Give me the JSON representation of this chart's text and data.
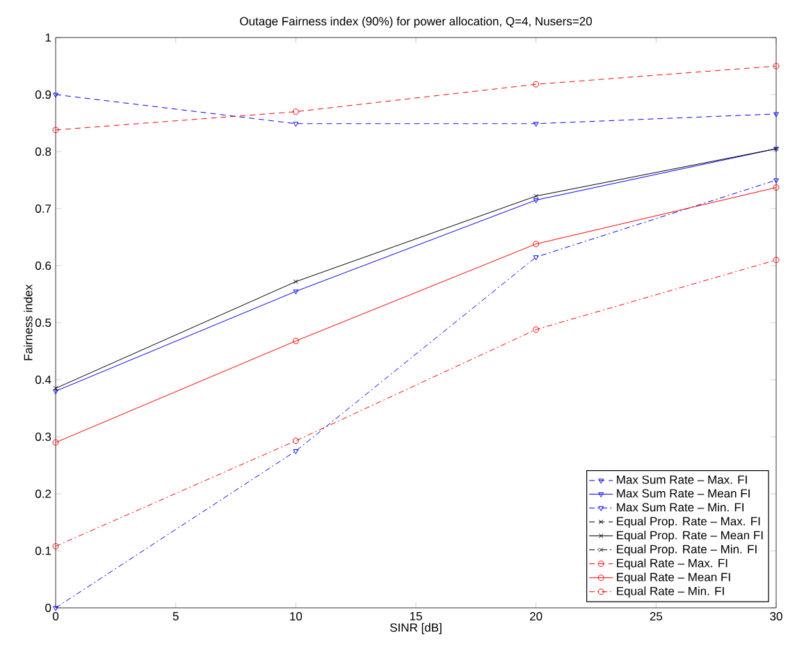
{
  "chart_data": {
    "type": "line",
    "title": "Outage Fairness index (90%) for power allocation, Q=4, Nusers=20",
    "xlabel": "SINR [dB]",
    "ylabel": "Fairness index",
    "x": [
      0,
      10,
      20,
      30
    ],
    "xlim": [
      0,
      30
    ],
    "xticks": [
      0,
      5,
      10,
      15,
      20,
      25,
      30
    ],
    "ylim": [
      0,
      1
    ],
    "yticks": [
      0,
      0.1,
      0.2,
      0.3,
      0.4,
      0.5,
      0.6,
      0.7,
      0.8,
      0.9,
      1
    ],
    "legend": "bottom right",
    "grid": false,
    "series": [
      {
        "name": "Max Sum Rate – Max. FI",
        "color": "#0000ff",
        "marker": "triangle",
        "line_style": "dashed",
        "values": [
          0.9,
          0.849,
          0.849,
          0.866
        ]
      },
      {
        "name": "Max Sum Rate – Mean FI",
        "color": "#0000ff",
        "marker": "triangle",
        "line_style": "solid",
        "values": [
          0.38,
          0.555,
          0.715,
          0.805
        ]
      },
      {
        "name": "Max Sum Rate – Min. FI",
        "color": "#0000ff",
        "marker": "triangle",
        "line_style": "dashdot",
        "values": [
          0,
          0.275,
          0.615,
          0.75
        ]
      },
      {
        "name": "Equal Prop. Rate – Max. FI",
        "color": "#000000",
        "marker": "cross",
        "line_style": "dashed",
        "values": [
          null,
          null,
          null,
          null
        ]
      },
      {
        "name": "Equal Prop. Rate – Mean FI",
        "color": "#000000",
        "marker": "cross",
        "line_style": "solid",
        "values": [
          0.385,
          0.572,
          0.722,
          0.805
        ]
      },
      {
        "name": "Equal Prop. Rate  – Min. FI",
        "color": "#000000",
        "marker": "cross",
        "line_style": "dashdot",
        "values": [
          null,
          null,
          null,
          null
        ]
      },
      {
        "name": "Equal Rate – Max. FI",
        "color": "#ff0000",
        "marker": "circle",
        "line_style": "dashed",
        "values": [
          0.838,
          0.87,
          0.918,
          0.95
        ]
      },
      {
        "name": "Equal Rate – Mean FI",
        "color": "#ff0000",
        "marker": "circle",
        "line_style": "solid",
        "values": [
          0.29,
          0.468,
          0.638,
          0.737
        ]
      },
      {
        "name": "Equal Rate – Min. FI",
        "color": "#ff0000",
        "marker": "circle",
        "line_style": "dashdot",
        "values": [
          0.108,
          0.293,
          0.488,
          0.61
        ]
      }
    ]
  }
}
